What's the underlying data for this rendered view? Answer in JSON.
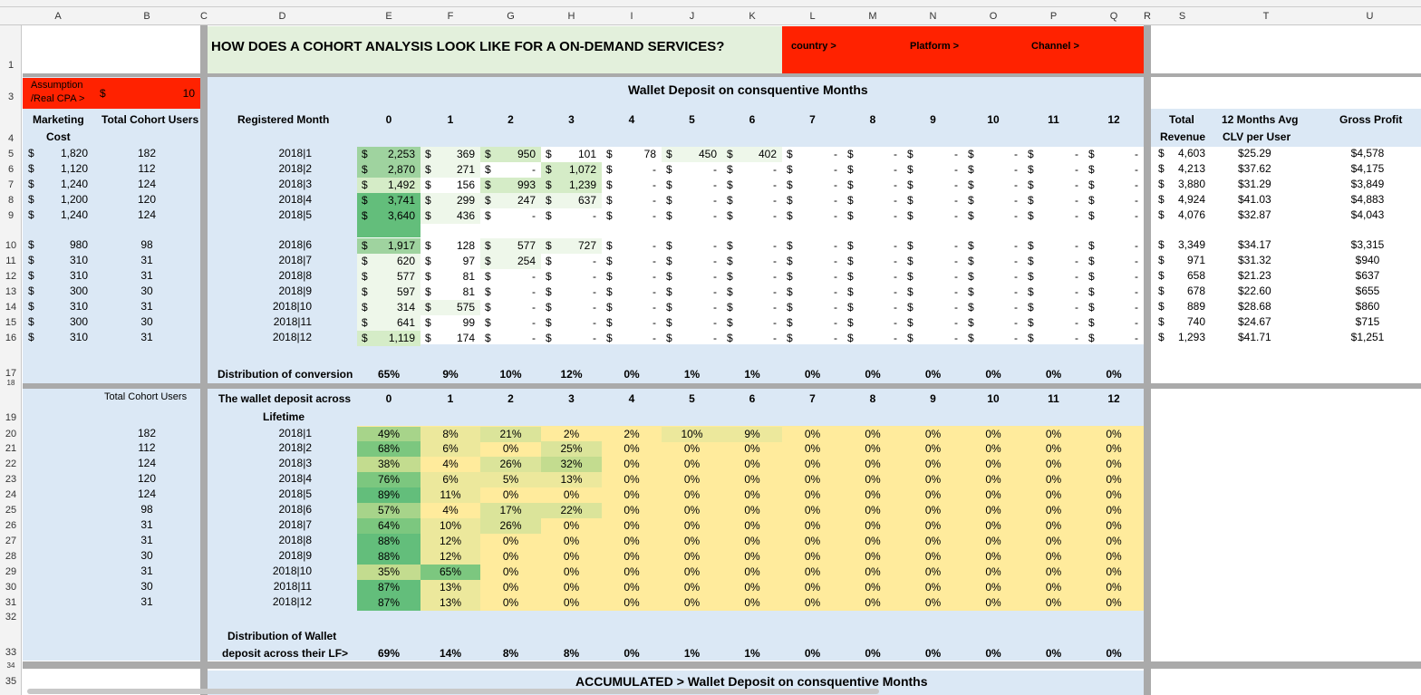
{
  "colors": {
    "light_blue": "#dbe8f5",
    "red": "#ff2200",
    "title_bg": "#e3f0dc",
    "separator": "#aaaaaa",
    "yellow": "#ffeb9c",
    "green_strong": "#63be7b",
    "green_mid": "#9fd39f",
    "green_light": "#d5ecc7",
    "green_pale": "#eef7ea"
  },
  "column_headers": [
    "A",
    "B",
    "C",
    "D",
    "E",
    "F",
    "G",
    "H",
    "I",
    "J",
    "K",
    "L",
    "M",
    "N",
    "O",
    "P",
    "Q",
    "R",
    "S",
    "T",
    "U"
  ],
  "row_headers": [
    "1",
    "3",
    "4",
    "5",
    "6",
    "7",
    "8",
    "9",
    "10",
    "11",
    "12",
    "13",
    "14",
    "15",
    "16",
    "17",
    "18",
    "19",
    "20",
    "21",
    "22",
    "23",
    "24",
    "25",
    "26",
    "27",
    "28",
    "29",
    "30",
    "31",
    "32",
    "33",
    "34",
    "35"
  ],
  "title": {
    "main": "HOW DOES A COHORT ANALYSIS LOOK LIKE FOR A ON-DEMAND SERVICES?",
    "filters": [
      "country >",
      "Platform >",
      "Channel >"
    ]
  },
  "assumption": {
    "label_line1": "Assumption",
    "label_line2": "/Real CPA >",
    "currency": "$",
    "value": "10"
  },
  "left_headers": {
    "marketing_line1": "Marketing",
    "marketing_line2": "Cost",
    "total_cohort_users": "Total Cohort Users"
  },
  "section1": {
    "title": "Wallet Deposit on consquentive Months",
    "registered_month": "Registered Month",
    "months": [
      "0",
      "1",
      "2",
      "3",
      "4",
      "5",
      "6",
      "7",
      "8",
      "9",
      "10",
      "11",
      "12"
    ],
    "distribution_label": "Distribution of conversion",
    "distribution": [
      "65%",
      "9%",
      "10%",
      "12%",
      "0%",
      "1%",
      "1%",
      "0%",
      "0%",
      "0%",
      "0%",
      "0%",
      "0%"
    ]
  },
  "right_headers": {
    "total_line1": "Total",
    "total_line2": "Revenue",
    "clv_line1": "12 Months Avg",
    "clv_line2": "CLV per User",
    "gross_profit": "Gross Profit"
  },
  "cohorts": [
    {
      "cost": "1,820",
      "users": "182",
      "month": "2018|1",
      "values": [
        "2,253",
        "369",
        "950",
        "101",
        "78",
        "450",
        "402",
        "-",
        "-",
        "-",
        "-",
        "-",
        "-"
      ],
      "revenue": "4,603",
      "clv": "$25.29",
      "profit": "$4,578"
    },
    {
      "cost": "1,120",
      "users": "112",
      "month": "2018|2",
      "values": [
        "2,870",
        "271",
        "-",
        "1,072",
        "-",
        "-",
        "-",
        "-",
        "-",
        "-",
        "-",
        "-",
        "-"
      ],
      "revenue": "4,213",
      "clv": "$37.62",
      "profit": "$4,175"
    },
    {
      "cost": "1,240",
      "users": "124",
      "month": "2018|3",
      "values": [
        "1,492",
        "156",
        "993",
        "1,239",
        "-",
        "-",
        "-",
        "-",
        "-",
        "-",
        "-",
        "-",
        "-"
      ],
      "revenue": "3,880",
      "clv": "$31.29",
      "profit": "$3,849"
    },
    {
      "cost": "1,200",
      "users": "120",
      "month": "2018|4",
      "values": [
        "3,741",
        "299",
        "247",
        "637",
        "-",
        "-",
        "-",
        "-",
        "-",
        "-",
        "-",
        "-",
        "-"
      ],
      "revenue": "4,924",
      "clv": "$41.03",
      "profit": "$4,883"
    },
    {
      "cost": "1,240",
      "users": "124",
      "month": "2018|5",
      "values": [
        "3,640",
        "436",
        "-",
        "-",
        "-",
        "-",
        "-",
        "-",
        "-",
        "-",
        "-",
        "-",
        "-"
      ],
      "revenue": "4,076",
      "clv": "$32.87",
      "profit": "$4,043"
    },
    {
      "cost": "980",
      "users": "98",
      "month": "2018|6",
      "values": [
        "1,917",
        "128",
        "577",
        "727",
        "-",
        "-",
        "-",
        "-",
        "-",
        "-",
        "-",
        "-",
        "-"
      ],
      "revenue": "3,349",
      "clv": "$34.17",
      "profit": "$3,315"
    },
    {
      "cost": "310",
      "users": "31",
      "month": "2018|7",
      "values": [
        "620",
        "97",
        "254",
        "-",
        "-",
        "-",
        "-",
        "-",
        "-",
        "-",
        "-",
        "-",
        "-"
      ],
      "revenue": "971",
      "clv": "$31.32",
      "profit": "$940"
    },
    {
      "cost": "310",
      "users": "31",
      "month": "2018|8",
      "values": [
        "577",
        "81",
        "-",
        "-",
        "-",
        "-",
        "-",
        "-",
        "-",
        "-",
        "-",
        "-",
        "-"
      ],
      "revenue": "658",
      "clv": "$21.23",
      "profit": "$637"
    },
    {
      "cost": "300",
      "users": "30",
      "month": "2018|9",
      "values": [
        "597",
        "81",
        "-",
        "-",
        "-",
        "-",
        "-",
        "-",
        "-",
        "-",
        "-",
        "-",
        "-"
      ],
      "revenue": "678",
      "clv": "$22.60",
      "profit": "$655"
    },
    {
      "cost": "310",
      "users": "31",
      "month": "2018|10",
      "values": [
        "314",
        "575",
        "-",
        "-",
        "-",
        "-",
        "-",
        "-",
        "-",
        "-",
        "-",
        "-",
        "-"
      ],
      "revenue": "889",
      "clv": "$28.68",
      "profit": "$860"
    },
    {
      "cost": "300",
      "users": "30",
      "month": "2018|11",
      "values": [
        "641",
        "99",
        "-",
        "-",
        "-",
        "-",
        "-",
        "-",
        "-",
        "-",
        "-",
        "-",
        "-"
      ],
      "revenue": "740",
      "clv": "$24.67",
      "profit": "$715"
    },
    {
      "cost": "310",
      "users": "31",
      "month": "2018|12",
      "values": [
        "1,119",
        "174",
        "-",
        "-",
        "-",
        "-",
        "-",
        "-",
        "-",
        "-",
        "-",
        "-",
        "-"
      ],
      "revenue": "1,293",
      "clv": "$41.71",
      "profit": "$1,251"
    }
  ],
  "section2": {
    "users_header": "Total Cohort Users",
    "label_line1": "The wallet deposit across",
    "label_line2": "Lifetime",
    "months": [
      "0",
      "1",
      "2",
      "3",
      "4",
      "5",
      "6",
      "7",
      "8",
      "9",
      "10",
      "11",
      "12"
    ],
    "rows": [
      {
        "users": "182",
        "month": "2018|1",
        "pct": [
          "49%",
          "8%",
          "21%",
          "2%",
          "2%",
          "10%",
          "9%",
          "0%",
          "0%",
          "0%",
          "0%",
          "0%",
          "0%"
        ]
      },
      {
        "users": "112",
        "month": "2018|2",
        "pct": [
          "68%",
          "6%",
          "0%",
          "25%",
          "0%",
          "0%",
          "0%",
          "0%",
          "0%",
          "0%",
          "0%",
          "0%",
          "0%"
        ]
      },
      {
        "users": "124",
        "month": "2018|3",
        "pct": [
          "38%",
          "4%",
          "26%",
          "32%",
          "0%",
          "0%",
          "0%",
          "0%",
          "0%",
          "0%",
          "0%",
          "0%",
          "0%"
        ]
      },
      {
        "users": "120",
        "month": "2018|4",
        "pct": [
          "76%",
          "6%",
          "5%",
          "13%",
          "0%",
          "0%",
          "0%",
          "0%",
          "0%",
          "0%",
          "0%",
          "0%",
          "0%"
        ]
      },
      {
        "users": "124",
        "month": "2018|5",
        "pct": [
          "89%",
          "11%",
          "0%",
          "0%",
          "0%",
          "0%",
          "0%",
          "0%",
          "0%",
          "0%",
          "0%",
          "0%",
          "0%"
        ]
      },
      {
        "users": "98",
        "month": "2018|6",
        "pct": [
          "57%",
          "4%",
          "17%",
          "22%",
          "0%",
          "0%",
          "0%",
          "0%",
          "0%",
          "0%",
          "0%",
          "0%",
          "0%"
        ]
      },
      {
        "users": "31",
        "month": "2018|7",
        "pct": [
          "64%",
          "10%",
          "26%",
          "0%",
          "0%",
          "0%",
          "0%",
          "0%",
          "0%",
          "0%",
          "0%",
          "0%",
          "0%"
        ]
      },
      {
        "users": "31",
        "month": "2018|8",
        "pct": [
          "88%",
          "12%",
          "0%",
          "0%",
          "0%",
          "0%",
          "0%",
          "0%",
          "0%",
          "0%",
          "0%",
          "0%",
          "0%"
        ]
      },
      {
        "users": "30",
        "month": "2018|9",
        "pct": [
          "88%",
          "12%",
          "0%",
          "0%",
          "0%",
          "0%",
          "0%",
          "0%",
          "0%",
          "0%",
          "0%",
          "0%",
          "0%"
        ]
      },
      {
        "users": "31",
        "month": "2018|10",
        "pct": [
          "35%",
          "65%",
          "0%",
          "0%",
          "0%",
          "0%",
          "0%",
          "0%",
          "0%",
          "0%",
          "0%",
          "0%",
          "0%"
        ]
      },
      {
        "users": "30",
        "month": "2018|11",
        "pct": [
          "87%",
          "13%",
          "0%",
          "0%",
          "0%",
          "0%",
          "0%",
          "0%",
          "0%",
          "0%",
          "0%",
          "0%",
          "0%"
        ]
      },
      {
        "users": "31",
        "month": "2018|12",
        "pct": [
          "87%",
          "13%",
          "0%",
          "0%",
          "0%",
          "0%",
          "0%",
          "0%",
          "0%",
          "0%",
          "0%",
          "0%",
          "0%"
        ]
      }
    ],
    "distribution_label_line1": "Distribution of Wallet",
    "distribution_label_line2": "deposit across their LF>",
    "distribution": [
      "69%",
      "14%",
      "8%",
      "8%",
      "0%",
      "1%",
      "1%",
      "0%",
      "0%",
      "0%",
      "0%",
      "0%",
      "0%"
    ]
  },
  "section3": {
    "title": "ACCUMULATED > Wallet Deposit on consquentive Months"
  }
}
